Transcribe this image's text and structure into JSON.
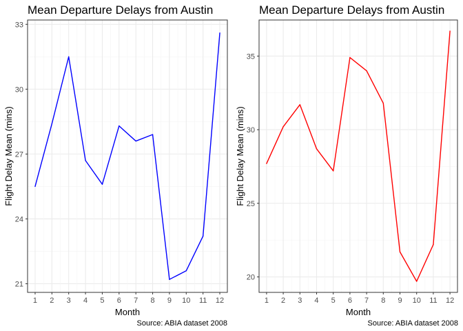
{
  "chart_data": [
    {
      "type": "line",
      "title": "Mean Departure Delays from Austin",
      "xlabel": "Month",
      "ylabel": "Flight Delay Mean (mins)",
      "caption": "Source: ABIA dataset 2008",
      "x": [
        1,
        2,
        3,
        4,
        5,
        6,
        7,
        8,
        9,
        10,
        11,
        12
      ],
      "series": [
        {
          "values": [
            25.5,
            28.4,
            31.5,
            26.7,
            25.6,
            28.3,
            27.6,
            27.9,
            21.2,
            21.6,
            23.2,
            32.6
          ],
          "color": "#0000ff"
        }
      ],
      "xlim": [
        0.55,
        12.45
      ],
      "ylim": [
        20.6,
        33.2
      ],
      "xticks": [
        "1",
        "2",
        "3",
        "4",
        "5",
        "6",
        "7",
        "8",
        "9",
        "10",
        "11",
        "12"
      ],
      "yticks": [
        {
          "value": 21,
          "label": "21"
        },
        {
          "value": 24,
          "label": "24"
        },
        {
          "value": 27,
          "label": "27"
        },
        {
          "value": 30,
          "label": "30"
        },
        {
          "value": 33,
          "label": "33"
        }
      ],
      "grid": true
    },
    {
      "type": "line",
      "title": "Mean Departure Delays from Austin",
      "xlabel": "Month",
      "ylabel": "Flight Delay Mean (mins)",
      "caption": "Source: ABIA dataset 2008",
      "x": [
        1,
        2,
        3,
        4,
        5,
        6,
        7,
        8,
        9,
        10,
        11,
        12
      ],
      "series": [
        {
          "values": [
            27.7,
            30.2,
            31.7,
            28.7,
            27.2,
            34.9,
            34.0,
            31.8,
            21.7,
            19.7,
            22.2,
            36.7
          ],
          "color": "#ff0000"
        }
      ],
      "xlim": [
        0.55,
        12.45
      ],
      "ylim": [
        18.95,
        37.45
      ],
      "xticks": [
        "1",
        "2",
        "3",
        "4",
        "5",
        "6",
        "7",
        "8",
        "9",
        "10",
        "11",
        "12"
      ],
      "yticks": [
        {
          "value": 20,
          "label": "20"
        },
        {
          "value": 25,
          "label": "25"
        },
        {
          "value": 30,
          "label": "30"
        },
        {
          "value": 35,
          "label": "35"
        }
      ],
      "grid": true
    }
  ]
}
